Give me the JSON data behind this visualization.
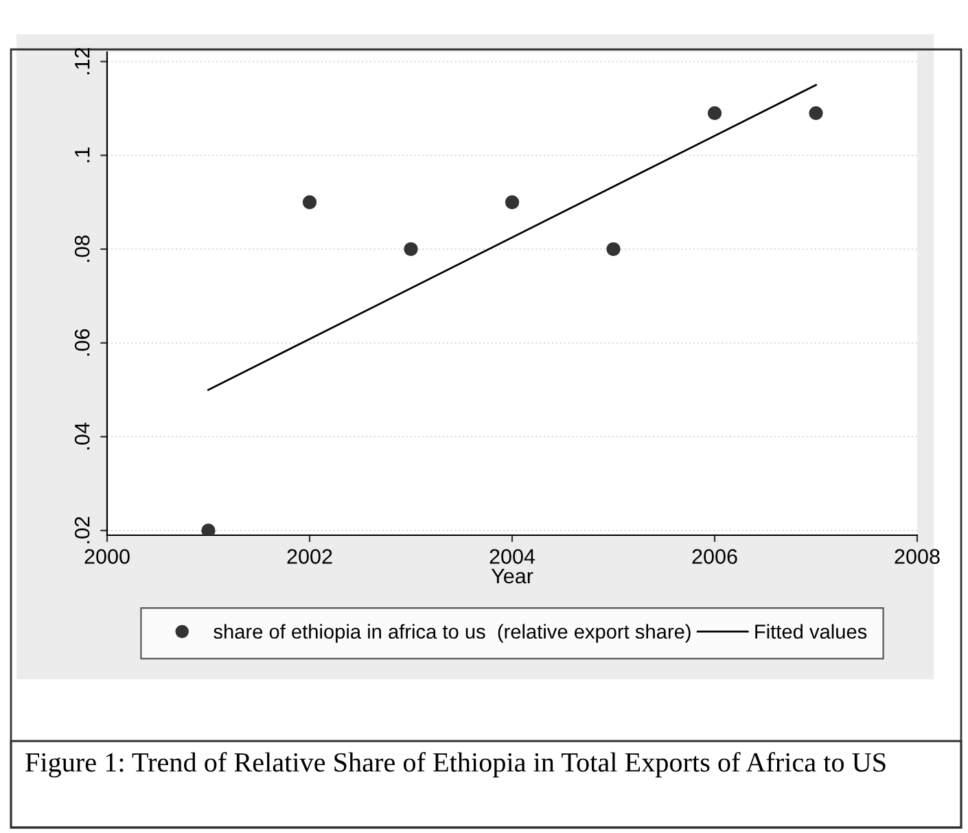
{
  "chart_data": {
    "type": "scatter",
    "xlabel": "Year",
    "series": [
      {
        "name": "share of ethiopia in africa to us  (relative export share)",
        "color": "#333333",
        "marker": "circle",
        "x": [
          2001,
          2002,
          2003,
          2004,
          2005,
          2006,
          2007
        ],
        "values": [
          0.02,
          0.09,
          0.08,
          0.09,
          0.08,
          0.109,
          0.109
        ]
      },
      {
        "name": "Fitted values",
        "type": "line",
        "color": "#000000",
        "line_style": "solid",
        "marker": "none",
        "x": [
          2001,
          2007
        ],
        "values": [
          0.05,
          0.115
        ]
      }
    ],
    "xlim": [
      2000,
      2008
    ],
    "xticks": [
      2000,
      2002,
      2004,
      2006,
      2008
    ],
    "ylim": [
      0.019,
      0.122
    ],
    "yticks": [
      {
        "value": 0.02,
        "label": ".02"
      },
      {
        "value": 0.04,
        "label": ".04"
      },
      {
        "value": 0.06,
        "label": ".06"
      },
      {
        "value": 0.08,
        "label": ".08"
      },
      {
        "value": 0.1,
        "label": ".1"
      },
      {
        "value": 0.12,
        "label": ".12"
      }
    ],
    "grid": "y",
    "legend": "bottom",
    "annotations": [
      "Figure 1: Trend of Relative Share of Ethiopia in Total Exports of Africa to US"
    ]
  }
}
